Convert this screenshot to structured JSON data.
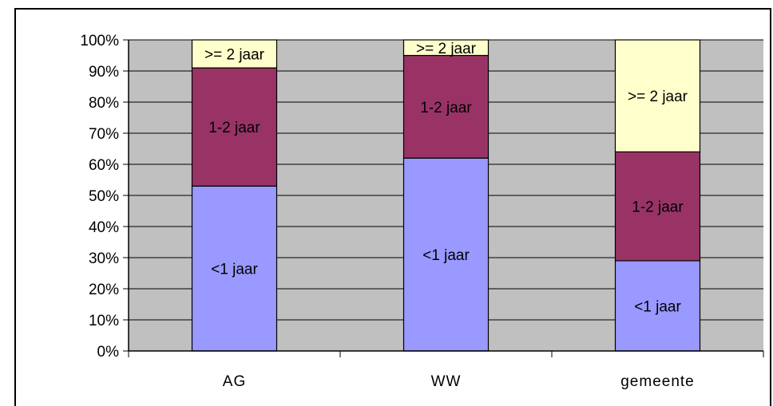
{
  "chart_data": {
    "type": "bar",
    "stacked": true,
    "percent": true,
    "title": "",
    "xlabel": "",
    "ylabel": "",
    "ylim": [
      0,
      100
    ],
    "yticks": [
      "0%",
      "10%",
      "20%",
      "30%",
      "40%",
      "50%",
      "60%",
      "70%",
      "80%",
      "90%",
      "100%"
    ],
    "grid": true,
    "categories": [
      "AG",
      "WW",
      "gemeente"
    ],
    "series": [
      {
        "label": "<1 jaar",
        "color": "#9999ff",
        "values": [
          53,
          62,
          29
        ]
      },
      {
        "label": "1-2 jaar",
        "color": "#993366",
        "values": [
          38,
          33,
          35
        ]
      },
      {
        "label": ">= 2 jaar",
        "color": "#ffffcc",
        "values": [
          9,
          5,
          36
        ]
      }
    ],
    "colors": {
      "plot_background": "#c0c0c0",
      "gridline": "#000000"
    }
  }
}
